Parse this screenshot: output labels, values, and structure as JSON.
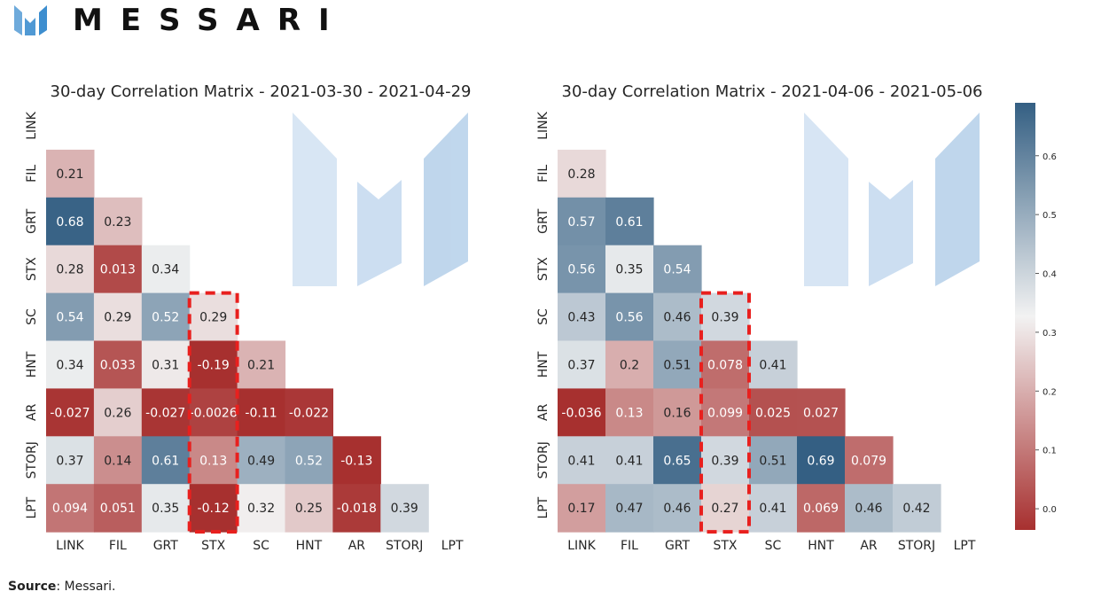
{
  "header": {
    "brand": "MESSARI"
  },
  "colors": {
    "low": "#a7302f",
    "mid": "#f2f2f2",
    "high": "#345f83",
    "logo": "#3d8ecf",
    "highlight": "#e8201e"
  },
  "footer": {
    "source_label": "Source",
    "source_text": ": Messari."
  },
  "chart_data": [
    {
      "type": "heatmap",
      "title": "30-day Correlation Matrix - 2021-03-30 - 2021-04-29",
      "labels": [
        "LINK",
        "FIL",
        "GRT",
        "STX",
        "SC",
        "HNT",
        "AR",
        "STORJ",
        "LPT"
      ],
      "triangle": "lower",
      "highlight_column": "STX",
      "rows": [
        [],
        [
          "0.21"
        ],
        [
          "0.68",
          "0.23"
        ],
        [
          "0.28",
          "0.013",
          "0.34"
        ],
        [
          "0.54",
          "0.29",
          "0.52",
          "0.29"
        ],
        [
          "0.34",
          "0.033",
          "0.31",
          "-0.19",
          "0.21"
        ],
        [
          "-0.027",
          "0.26",
          "-0.027",
          "-0.0026",
          "-0.11",
          "-0.022"
        ],
        [
          "0.37",
          "0.14",
          "0.61",
          "0.13",
          "0.49",
          "0.52",
          "-0.13"
        ],
        [
          "0.094",
          "0.051",
          "0.35",
          "-0.12",
          "0.32",
          "0.25",
          "-0.018",
          "0.39"
        ]
      ]
    },
    {
      "type": "heatmap",
      "title": "30-day Correlation Matrix - 2021-04-06 - 2021-05-06",
      "labels": [
        "LINK",
        "FIL",
        "GRT",
        "STX",
        "SC",
        "HNT",
        "AR",
        "STORJ",
        "LPT"
      ],
      "triangle": "lower",
      "highlight_column": "STX",
      "rows": [
        [],
        [
          "0.28"
        ],
        [
          "0.57",
          "0.61"
        ],
        [
          "0.56",
          "0.35",
          "0.54"
        ],
        [
          "0.43",
          "0.56",
          "0.46",
          "0.39"
        ],
        [
          "0.37",
          "0.2",
          "0.51",
          "0.078",
          "0.41"
        ],
        [
          "-0.036",
          "0.13",
          "0.16",
          "0.099",
          "0.025",
          "0.027"
        ],
        [
          "0.41",
          "0.41",
          "0.65",
          "0.39",
          "0.51",
          "0.69",
          "0.079"
        ],
        [
          "0.17",
          "0.47",
          "0.46",
          "0.27",
          "0.41",
          "0.069",
          "0.46",
          "0.42"
        ]
      ]
    }
  ],
  "colorbar": {
    "min": -0.036,
    "max": 0.69,
    "ticks": [
      "0.0",
      "0.1",
      "0.2",
      "0.3",
      "0.4",
      "0.5",
      "0.6"
    ],
    "tick_values": [
      0,
      0.1,
      0.2,
      0.3,
      0.4,
      0.5,
      0.6
    ]
  }
}
